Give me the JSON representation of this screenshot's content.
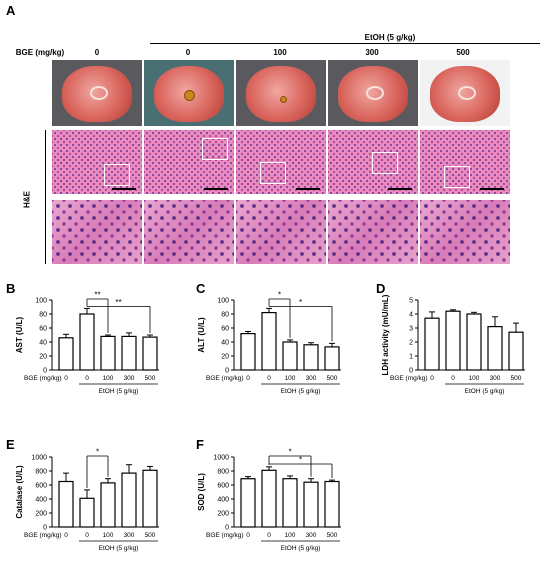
{
  "panels": {
    "A": {
      "letter": "A",
      "row_label_bge": "BGE (mg/kg)",
      "row_label_he": "H&E",
      "etoh_header": "EtOH (5 g/kg)",
      "doses": [
        "0",
        "0",
        "100",
        "300",
        "500"
      ]
    },
    "B": {
      "letter": "B"
    },
    "C": {
      "letter": "C"
    },
    "D": {
      "letter": "D"
    },
    "E": {
      "letter": "E"
    },
    "F": {
      "letter": "F"
    }
  },
  "bar_axis_labels": {
    "bge_label": "BGE  (mg/kg)",
    "etoh_label": "EtOH  (5 g/kg)",
    "doses": [
      "0",
      "0",
      "100",
      "300",
      "500"
    ]
  },
  "chart_data": [
    {
      "id": "B",
      "type": "bar",
      "ylabel": "AST (U/L)",
      "ylim": [
        0,
        100
      ],
      "yticks": [
        "0",
        "20",
        "40",
        "60",
        "80",
        "100"
      ],
      "categories": [
        "0",
        "0",
        "100",
        "300",
        "500"
      ],
      "values": [
        46,
        80,
        48,
        48,
        47
      ],
      "errors": [
        5,
        8,
        2,
        5,
        3
      ],
      "significance": [
        {
          "from": 1,
          "to": 2,
          "label": "**"
        },
        {
          "from": 1,
          "to": 4,
          "label": "**"
        }
      ]
    },
    {
      "id": "C",
      "type": "bar",
      "ylabel": "ALT (U/L)",
      "ylim": [
        0,
        100
      ],
      "yticks": [
        "0",
        "20",
        "40",
        "60",
        "80",
        "100"
      ],
      "categories": [
        "0",
        "0",
        "100",
        "300",
        "500"
      ],
      "values": [
        52,
        82,
        40,
        36,
        33
      ],
      "errors": [
        3,
        6,
        3,
        3,
        5
      ],
      "significance": [
        {
          "from": 1,
          "to": 2,
          "label": "*"
        },
        {
          "from": 1,
          "to": 4,
          "label": "*"
        }
      ]
    },
    {
      "id": "D",
      "type": "bar",
      "ylabel": "LDH activity (mU/mL)",
      "ylim": [
        0,
        5
      ],
      "yticks": [
        "0",
        "1",
        "2",
        "3",
        "4",
        "5"
      ],
      "categories": [
        "0",
        "0",
        "100",
        "300",
        "500"
      ],
      "values": [
        3.7,
        4.2,
        4.0,
        3.1,
        2.7
      ],
      "errors": [
        0.45,
        0.1,
        0.12,
        0.7,
        0.65
      ],
      "significance": []
    },
    {
      "id": "E",
      "type": "bar",
      "ylabel": "Catalase (U/L)",
      "ylim": [
        0,
        1000
      ],
      "yticks": [
        "0",
        "200",
        "400",
        "600",
        "800",
        "1000"
      ],
      "categories": [
        "0",
        "0",
        "100",
        "300",
        "500"
      ],
      "values": [
        650,
        410,
        630,
        770,
        810
      ],
      "errors": [
        120,
        120,
        60,
        120,
        55
      ],
      "significance": [
        {
          "from": 1,
          "to": 2,
          "label": "*"
        }
      ]
    },
    {
      "id": "F",
      "type": "bar",
      "ylabel": "SOD (U/L)",
      "ylim": [
        0,
        1000
      ],
      "yticks": [
        "0",
        "200",
        "400",
        "600",
        "800",
        "1000"
      ],
      "categories": [
        "0",
        "0",
        "100",
        "300",
        "500"
      ],
      "values": [
        690,
        810,
        690,
        640,
        650
      ],
      "errors": [
        30,
        50,
        40,
        50,
        20
      ],
      "significance": [
        {
          "from": 1,
          "to": 3,
          "label": "*"
        },
        {
          "from": 1,
          "to": 4,
          "label": "*"
        }
      ]
    }
  ]
}
